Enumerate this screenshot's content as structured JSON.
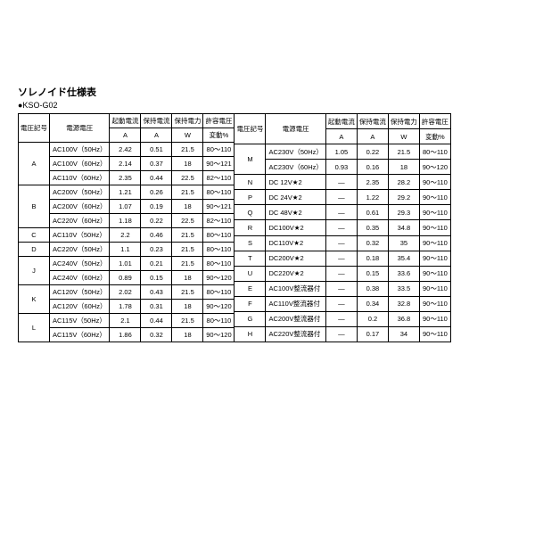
{
  "title": "ソレノイド仕様表",
  "subtitle": "●KSO-G02",
  "headers": {
    "col1": "電圧記号",
    "col2": "電源電圧",
    "col3a": "起動電流",
    "col3b": "A",
    "col4a": "保持電流",
    "col4b": "A",
    "col5a": "保持電力",
    "col5b": "W",
    "col6a": "許容電圧",
    "col6b": "変動%"
  },
  "left": [
    {
      "sym": "A",
      "span": 3,
      "rows": [
        [
          "AC100V（50Hz）",
          "2.42",
          "0.51",
          "21.5",
          "80～110"
        ],
        [
          "AC100V（60Hz）",
          "2.14",
          "0.37",
          "18",
          "90～121"
        ],
        [
          "AC110V（60Hz）",
          "2.35",
          "0.44",
          "22.5",
          "82～110"
        ]
      ]
    },
    {
      "sym": "B",
      "span": 3,
      "rows": [
        [
          "AC200V（50Hz）",
          "1.21",
          "0.26",
          "21.5",
          "80～110"
        ],
        [
          "AC200V（60Hz）",
          "1.07",
          "0.19",
          "18",
          "90～121"
        ],
        [
          "AC220V（60Hz）",
          "1.18",
          "0.22",
          "22.5",
          "82～110"
        ]
      ]
    },
    {
      "sym": "C",
      "span": 1,
      "rows": [
        [
          "AC110V（50Hz）",
          "2.2",
          "0.46",
          "21.5",
          "80～110"
        ]
      ]
    },
    {
      "sym": "D",
      "span": 1,
      "rows": [
        [
          "AC220V（50Hz）",
          "1.1",
          "0.23",
          "21.5",
          "80～110"
        ]
      ]
    },
    {
      "sym": "J",
      "span": 2,
      "rows": [
        [
          "AC240V（50Hz）",
          "1.01",
          "0.21",
          "21.5",
          "80～110"
        ],
        [
          "AC240V（60Hz）",
          "0.89",
          "0.15",
          "18",
          "90～120"
        ]
      ]
    },
    {
      "sym": "K",
      "span": 2,
      "rows": [
        [
          "AC120V（50Hz）",
          "2.02",
          "0.43",
          "21.5",
          "80～110"
        ],
        [
          "AC120V（60Hz）",
          "1.78",
          "0.31",
          "18",
          "90～120"
        ]
      ]
    },
    {
      "sym": "L",
      "span": 2,
      "rows": [
        [
          "AC115V（50Hz）",
          "2.1",
          "0.44",
          "21.5",
          "80～110"
        ],
        [
          "AC115V（60Hz）",
          "1.86",
          "0.32",
          "18",
          "90～120"
        ]
      ]
    }
  ],
  "right": [
    {
      "sym": "M",
      "span": 2,
      "rows": [
        [
          "AC230V（50Hz）",
          "1.05",
          "0.22",
          "21.5",
          "80～110"
        ],
        [
          "AC230V（60Hz）",
          "0.93",
          "0.16",
          "18",
          "90～120"
        ]
      ]
    },
    {
      "sym": "N",
      "span": 1,
      "rows": [
        [
          "DC 12V★2",
          "—",
          "2.35",
          "28.2",
          "90～110"
        ]
      ]
    },
    {
      "sym": "P",
      "span": 1,
      "rows": [
        [
          "DC 24V★2",
          "—",
          "1.22",
          "29.2",
          "90～110"
        ]
      ]
    },
    {
      "sym": "Q",
      "span": 1,
      "rows": [
        [
          "DC 48V★2",
          "—",
          "0.61",
          "29.3",
          "90～110"
        ]
      ]
    },
    {
      "sym": "R",
      "span": 1,
      "rows": [
        [
          "DC100V★2",
          "—",
          "0.35",
          "34.8",
          "90～110"
        ]
      ]
    },
    {
      "sym": "S",
      "span": 1,
      "rows": [
        [
          "DC110V★2",
          "—",
          "0.32",
          "35",
          "90～110"
        ]
      ]
    },
    {
      "sym": "T",
      "span": 1,
      "rows": [
        [
          "DC200V★2",
          "—",
          "0.18",
          "35.4",
          "90～110"
        ]
      ]
    },
    {
      "sym": "U",
      "span": 1,
      "rows": [
        [
          "DC220V★2",
          "—",
          "0.15",
          "33.6",
          "90～110"
        ]
      ]
    },
    {
      "sym": "E",
      "span": 1,
      "rows": [
        [
          "AC100V整流器付",
          "—",
          "0.38",
          "33.5",
          "90～110"
        ]
      ]
    },
    {
      "sym": "F",
      "span": 1,
      "rows": [
        [
          "AC110V整流器付",
          "—",
          "0.34",
          "32.8",
          "90～110"
        ]
      ]
    },
    {
      "sym": "G",
      "span": 1,
      "rows": [
        [
          "AC200V整流器付",
          "—",
          "0.2",
          "36.8",
          "90～110"
        ]
      ]
    },
    {
      "sym": "H",
      "span": 1,
      "rows": [
        [
          "AC220V整流器付",
          "—",
          "0.17",
          "34",
          "90～110"
        ]
      ]
    }
  ]
}
